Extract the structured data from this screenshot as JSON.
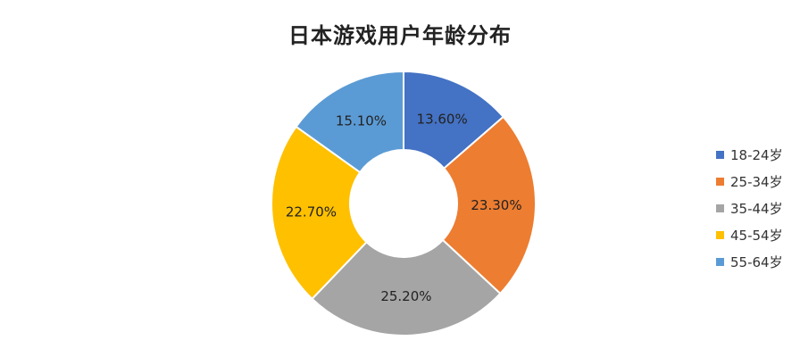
{
  "chart_data": {
    "type": "pie",
    "subtype": "donut",
    "title": "日本游戏用户年龄分布",
    "categories": [
      "18-24岁",
      "25-34岁",
      "35-44岁",
      "45-54岁",
      "55-64岁"
    ],
    "values": [
      13.6,
      23.3,
      25.2,
      22.7,
      15.1
    ],
    "labels": [
      "13.60%",
      "23.30%",
      "25.20%",
      "22.70%",
      "15.10%"
    ],
    "colors": [
      "#4472C4",
      "#ED7D31",
      "#A5A5A5",
      "#FFC000",
      "#5B9BD5"
    ],
    "legend_position": "right",
    "start_angle": "12 o'clock, clockwise"
  }
}
